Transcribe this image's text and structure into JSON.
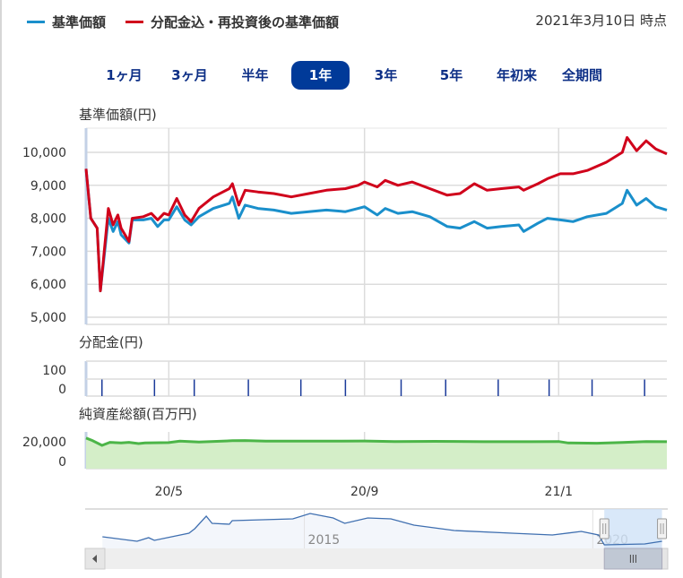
{
  "legend": {
    "series1": {
      "label": "基準価額",
      "color": "#1a8fcb"
    },
    "series2": {
      "label": "分配金込・再投資後の基準価額",
      "color": "#d0021b"
    }
  },
  "as_of": "2021年3月10日 時点",
  "ranges": [
    {
      "label": "1ヶ月",
      "active": false
    },
    {
      "label": "3ヶ月",
      "active": false
    },
    {
      "label": "半年",
      "active": false
    },
    {
      "label": "1年",
      "active": true
    },
    {
      "label": "3年",
      "active": false
    },
    {
      "label": "5年",
      "active": false
    },
    {
      "label": "年初来",
      "active": false
    },
    {
      "label": "全期間",
      "active": false
    }
  ],
  "colors": {
    "accent": "#003a99",
    "nav_line": "#4cb548",
    "nav_fill": "#d4eec8",
    "dividend": "#1a3a9a",
    "navigator_line": "#3f6fb0",
    "navigator_selection": "#cfe2f7"
  },
  "chart_data": [
    {
      "type": "line",
      "title": "基準価額(円)",
      "ylim": [
        5000,
        10700
      ],
      "yticks": [
        "10,000",
        "9,000",
        "8,000",
        "7,000",
        "6,000",
        "5,000"
      ],
      "ytick_values": [
        10000,
        9000,
        8000,
        7000,
        6000,
        5000
      ],
      "xlim": [
        "2020-03-10",
        "2021-03-10"
      ],
      "xticks": [
        {
          "date": "2020-05-01",
          "label": "20/5"
        },
        {
          "date": "2020-09-01",
          "label": "20/9"
        },
        {
          "date": "2021-01-01",
          "label": "21/1"
        }
      ],
      "grid": true,
      "series": [
        {
          "name": "基準価額",
          "color": "#1a8fcb",
          "points": [
            [
              "2020-03-10",
              9500
            ],
            [
              "2020-03-13",
              8000
            ],
            [
              "2020-03-17",
              7700
            ],
            [
              "2020-03-19",
              5800
            ],
            [
              "2020-03-24",
              8000
            ],
            [
              "2020-03-27",
              7600
            ],
            [
              "2020-03-30",
              7900
            ],
            [
              "2020-04-01",
              7500
            ],
            [
              "2020-04-06",
              7250
            ],
            [
              "2020-04-08",
              7950
            ],
            [
              "2020-04-15",
              7950
            ],
            [
              "2020-04-20",
              8000
            ],
            [
              "2020-04-24",
              7750
            ],
            [
              "2020-04-28",
              7950
            ],
            [
              "2020-05-01",
              7950
            ],
            [
              "2020-05-06",
              8350
            ],
            [
              "2020-05-11",
              7950
            ],
            [
              "2020-05-15",
              7800
            ],
            [
              "2020-05-20",
              8050
            ],
            [
              "2020-05-29",
              8300
            ],
            [
              "2020-06-08",
              8450
            ],
            [
              "2020-06-10",
              8650
            ],
            [
              "2020-06-14",
              8000
            ],
            [
              "2020-06-18",
              8400
            ],
            [
              "2020-06-26",
              8300
            ],
            [
              "2020-07-06",
              8250
            ],
            [
              "2020-07-17",
              8150
            ],
            [
              "2020-07-28",
              8200
            ],
            [
              "2020-08-08",
              8250
            ],
            [
              "2020-08-20",
              8200
            ],
            [
              "2020-08-28",
              8300
            ],
            [
              "2020-09-01",
              8350
            ],
            [
              "2020-09-09",
              8100
            ],
            [
              "2020-09-14",
              8300
            ],
            [
              "2020-09-22",
              8150
            ],
            [
              "2020-10-01",
              8200
            ],
            [
              "2020-10-12",
              8050
            ],
            [
              "2020-10-23",
              7750
            ],
            [
              "2020-10-31",
              7700
            ],
            [
              "2020-11-09",
              7900
            ],
            [
              "2020-11-17",
              7700
            ],
            [
              "2020-11-26",
              7750
            ],
            [
              "2020-12-07",
              7800
            ],
            [
              "2020-12-10",
              7600
            ],
            [
              "2020-12-19",
              7850
            ],
            [
              "2020-12-25",
              8000
            ],
            [
              "2021-01-02",
              7950
            ],
            [
              "2021-01-10",
              7900
            ],
            [
              "2021-01-19",
              8050
            ],
            [
              "2021-01-31",
              8150
            ],
            [
              "2021-02-10",
              8450
            ],
            [
              "2021-02-13",
              8850
            ],
            [
              "2021-02-19",
              8400
            ],
            [
              "2021-02-25",
              8600
            ],
            [
              "2021-03-03",
              8350
            ],
            [
              "2021-03-10",
              8250
            ]
          ]
        },
        {
          "name": "分配金込・再投資後の基準価額",
          "color": "#d0021b",
          "points": [
            [
              "2020-03-10",
              9500
            ],
            [
              "2020-03-13",
              8000
            ],
            [
              "2020-03-17",
              7700
            ],
            [
              "2020-03-19",
              5800
            ],
            [
              "2020-03-24",
              8300
            ],
            [
              "2020-03-27",
              7800
            ],
            [
              "2020-03-30",
              8100
            ],
            [
              "2020-04-01",
              7700
            ],
            [
              "2020-04-06",
              7300
            ],
            [
              "2020-04-08",
              8000
            ],
            [
              "2020-04-15",
              8050
            ],
            [
              "2020-04-20",
              8150
            ],
            [
              "2020-04-24",
              7950
            ],
            [
              "2020-04-28",
              8150
            ],
            [
              "2020-05-01",
              8100
            ],
            [
              "2020-05-06",
              8600
            ],
            [
              "2020-05-11",
              8100
            ],
            [
              "2020-05-15",
              7900
            ],
            [
              "2020-05-20",
              8300
            ],
            [
              "2020-05-29",
              8650
            ],
            [
              "2020-06-08",
              8900
            ],
            [
              "2020-06-10",
              9050
            ],
            [
              "2020-06-14",
              8400
            ],
            [
              "2020-06-18",
              8850
            ],
            [
              "2020-06-26",
              8800
            ],
            [
              "2020-07-06",
              8750
            ],
            [
              "2020-07-17",
              8650
            ],
            [
              "2020-07-28",
              8750
            ],
            [
              "2020-08-08",
              8850
            ],
            [
              "2020-08-20",
              8900
            ],
            [
              "2020-08-28",
              9000
            ],
            [
              "2020-09-01",
              9100
            ],
            [
              "2020-09-09",
              8950
            ],
            [
              "2020-09-14",
              9150
            ],
            [
              "2020-09-22",
              9000
            ],
            [
              "2020-10-01",
              9100
            ],
            [
              "2020-10-12",
              8900
            ],
            [
              "2020-10-23",
              8700
            ],
            [
              "2020-10-31",
              8750
            ],
            [
              "2020-11-09",
              9050
            ],
            [
              "2020-11-17",
              8850
            ],
            [
              "2020-11-26",
              8900
            ],
            [
              "2020-12-07",
              8950
            ],
            [
              "2020-12-10",
              8850
            ],
            [
              "2020-12-19",
              9050
            ],
            [
              "2020-12-25",
              9200
            ],
            [
              "2021-01-02",
              9350
            ],
            [
              "2021-01-10",
              9350
            ],
            [
              "2021-01-19",
              9450
            ],
            [
              "2021-01-31",
              9700
            ],
            [
              "2021-02-10",
              10000
            ],
            [
              "2021-02-13",
              10450
            ],
            [
              "2021-02-19",
              10050
            ],
            [
              "2021-02-25",
              10350
            ],
            [
              "2021-03-03",
              10100
            ],
            [
              "2021-03-10",
              9950
            ]
          ]
        }
      ]
    },
    {
      "type": "bar",
      "title": "分配金(円)",
      "ylim": [
        0,
        200
      ],
      "yticks": [
        "100",
        "0"
      ],
      "ytick_values": [
        100,
        0
      ],
      "color": "#1a3a9a",
      "points": [
        [
          "2020-03-20",
          100
        ],
        [
          "2020-04-22",
          100
        ],
        [
          "2020-05-17",
          100
        ],
        [
          "2020-06-20",
          100
        ],
        [
          "2020-07-23",
          100
        ],
        [
          "2020-08-20",
          100
        ],
        [
          "2020-09-24",
          100
        ],
        [
          "2020-10-22",
          100
        ],
        [
          "2020-11-24",
          100
        ],
        [
          "2020-12-26",
          100
        ],
        [
          "2021-01-22",
          100
        ],
        [
          "2021-02-24",
          100
        ]
      ]
    },
    {
      "type": "area",
      "title": "純資産総額(百万円)",
      "ylim": [
        0,
        30000
      ],
      "yticks": [
        "20,000",
        "0"
      ],
      "ytick_values": [
        20000,
        0
      ],
      "points": [
        [
          "2020-03-10",
          25000
        ],
        [
          "2020-03-14",
          23000
        ],
        [
          "2020-03-20",
          19000
        ],
        [
          "2020-03-25",
          21500
        ],
        [
          "2020-04-01",
          21000
        ],
        [
          "2020-04-06",
          21500
        ],
        [
          "2020-04-12",
          20500
        ],
        [
          "2020-04-16",
          21000
        ],
        [
          "2020-05-01",
          21300
        ],
        [
          "2020-05-08",
          22500
        ],
        [
          "2020-05-20",
          21800
        ],
        [
          "2020-06-10",
          22800
        ],
        [
          "2020-06-18",
          23000
        ],
        [
          "2020-07-01",
          22500
        ],
        [
          "2020-08-01",
          22500
        ],
        [
          "2020-09-01",
          22600
        ],
        [
          "2020-09-20",
          22200
        ],
        [
          "2020-10-15",
          22300
        ],
        [
          "2020-11-15",
          22000
        ],
        [
          "2020-12-15",
          22000
        ],
        [
          "2021-01-01",
          22200
        ],
        [
          "2021-01-07",
          21000
        ],
        [
          "2021-01-25",
          20800
        ],
        [
          "2021-02-10",
          21400
        ],
        [
          "2021-02-25",
          22200
        ],
        [
          "2021-03-10",
          22000
        ]
      ]
    },
    {
      "type": "line",
      "role": "navigator",
      "xticks": [
        {
          "year": 2015,
          "label": "2015"
        },
        {
          "year": 2020,
          "label": "2020"
        }
      ],
      "xlim": [
        2011.2,
        2021.3
      ],
      "selection": [
        2020.2,
        2021.2
      ],
      "points": [
        [
          2011.5,
          9250
        ],
        [
          2012.1,
          8250
        ],
        [
          2012.3,
          9050
        ],
        [
          2012.4,
          8450
        ],
        [
          2013.0,
          10050
        ],
        [
          2013.1,
          11050
        ],
        [
          2013.3,
          13850
        ],
        [
          2013.4,
          12250
        ],
        [
          2013.7,
          12050
        ],
        [
          2013.75,
          12850
        ],
        [
          2014.8,
          13250
        ],
        [
          2015.1,
          14450
        ],
        [
          2015.5,
          13450
        ],
        [
          2015.7,
          12250
        ],
        [
          2016.1,
          13450
        ],
        [
          2016.5,
          13250
        ],
        [
          2016.9,
          11850
        ],
        [
          2017.6,
          10650
        ],
        [
          2018.6,
          10050
        ],
        [
          2019.3,
          9650
        ],
        [
          2019.8,
          10450
        ],
        [
          2020.1,
          9650
        ],
        [
          2020.2,
          7450
        ],
        [
          2020.9,
          7650
        ],
        [
          2021.2,
          8250
        ]
      ]
    }
  ]
}
